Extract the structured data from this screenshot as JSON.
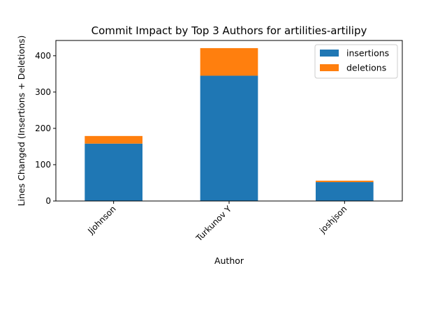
{
  "chart_data": {
    "type": "bar",
    "stacked": true,
    "title": "Commit Impact by Top 3 Authors for artilities-artilipy",
    "xlabel": "Author",
    "ylabel": "Lines Changed (Insertions + Deletions)",
    "categories": [
      "Jjohnson",
      "Turkunov Y",
      "joshjson"
    ],
    "series": [
      {
        "name": "insertions",
        "values": [
          158,
          345,
          52
        ],
        "color": "#1f77b4"
      },
      {
        "name": "deletions",
        "values": [
          21,
          76,
          4
        ],
        "color": "#ff7f0e"
      }
    ],
    "ylim": [
      0,
      442
    ],
    "yticks": [
      0,
      100,
      200,
      300,
      400
    ],
    "grid": false,
    "legend_position": "top-right"
  }
}
